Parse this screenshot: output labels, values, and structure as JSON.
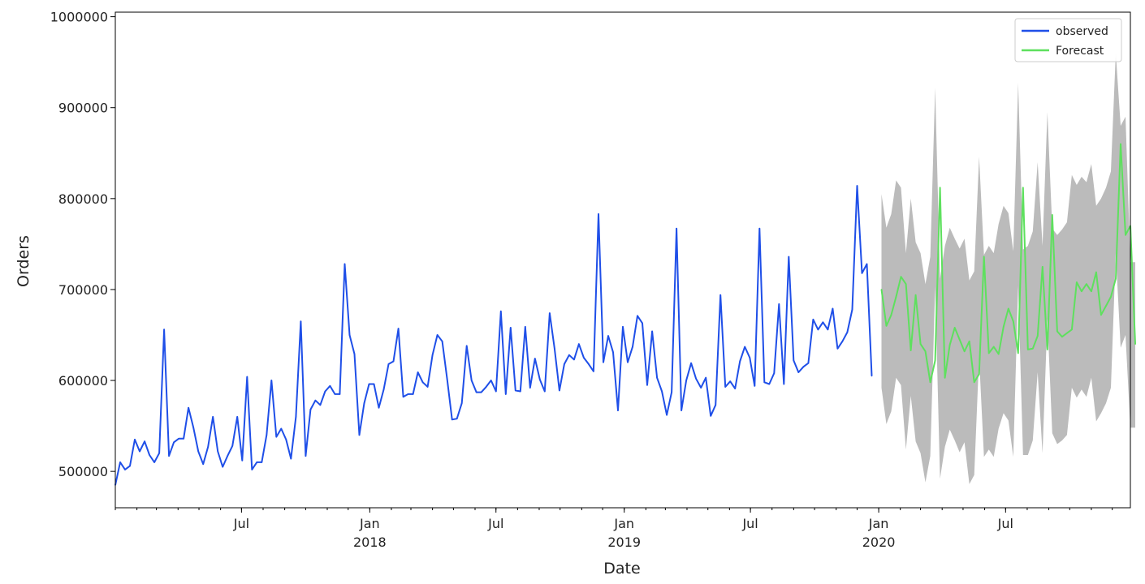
{
  "chart_data": {
    "type": "line",
    "title": "",
    "xlabel": "Date",
    "ylabel": "Orders",
    "xlim": [
      "2017-01-01",
      "2020-12-27"
    ],
    "ylim": [
      460000,
      1005000
    ],
    "y_ticks": [
      {
        "value": 500000,
        "label": "500000"
      },
      {
        "value": 600000,
        "label": "600000"
      },
      {
        "value": 700000,
        "label": "700000"
      },
      {
        "value": 800000,
        "label": "800000"
      },
      {
        "value": 900000,
        "label": "900000"
      },
      {
        "value": 1000000,
        "label": "1000000"
      }
    ],
    "x_ticks": [
      {
        "date": "2017-07-01",
        "label": "Jul",
        "year": ""
      },
      {
        "date": "2018-01-01",
        "label": "Jan",
        "year": "2018"
      },
      {
        "date": "2018-07-01",
        "label": "Jul",
        "year": ""
      },
      {
        "date": "2019-01-01",
        "label": "Jan",
        "year": "2019"
      },
      {
        "date": "2019-07-01",
        "label": "Jul",
        "year": ""
      },
      {
        "date": "2020-01-01",
        "label": "Jan",
        "year": "2020"
      },
      {
        "date": "2020-07-01",
        "label": "Jul",
        "year": ""
      }
    ],
    "legend": {
      "position": "top-right",
      "entries": [
        "observed",
        "Forecast"
      ]
    },
    "grid": false,
    "series": [
      {
        "name": "observed",
        "color": "#1f4fe8",
        "start": "2017-01-01",
        "interval_days": 7,
        "values": [
          485000,
          510000,
          502000,
          506000,
          535000,
          522000,
          533000,
          518000,
          510000,
          520000,
          656000,
          517000,
          532000,
          536000,
          536000,
          570000,
          548000,
          522000,
          508000,
          527000,
          560000,
          522000,
          505000,
          517000,
          528000,
          560000,
          512000,
          604000,
          502000,
          510000,
          510000,
          540000,
          600000,
          538000,
          547000,
          535000,
          514000,
          560000,
          665000,
          517000,
          568000,
          578000,
          573000,
          588000,
          594000,
          585000,
          585000,
          728000,
          650000,
          629000,
          540000,
          575000,
          596000,
          596000,
          570000,
          590000,
          618000,
          621000,
          657000,
          582000,
          585000,
          585000,
          609000,
          598000,
          593000,
          628000,
          650000,
          643000,
          601000,
          557000,
          558000,
          575000,
          638000,
          600000,
          587000,
          587000,
          593000,
          600000,
          588000,
          676000,
          585000,
          658000,
          589000,
          588000,
          659000,
          592000,
          624000,
          601000,
          588000,
          674000,
          635000,
          589000,
          618000,
          628000,
          623000,
          640000,
          625000,
          618000,
          610000,
          783000,
          620000,
          649000,
          631000,
          567000,
          659000,
          620000,
          637000,
          671000,
          663000,
          595000,
          654000,
          603000,
          588000,
          562000,
          587000,
          767000,
          567000,
          600000,
          619000,
          602000,
          592000,
          603000,
          561000,
          573000,
          694000,
          593000,
          599000,
          591000,
          621000,
          637000,
          625000,
          594000,
          767000,
          598000,
          596000,
          608000,
          684000,
          596000,
          736000,
          622000,
          609000,
          615000,
          619000,
          667000,
          656000,
          664000,
          656000,
          679000,
          635000,
          643000,
          653000,
          678000,
          814000,
          718000,
          728000,
          605000
        ]
      },
      {
        "name": "Forecast",
        "color": "#5ee05e",
        "start": "2020-01-05",
        "interval_days": 7,
        "values": [
          700000,
          660000,
          672000,
          692000,
          714000,
          706000,
          633000,
          694000,
          640000,
          632000,
          598000,
          622000,
          812000,
          603000,
          639000,
          658000,
          645000,
          632000,
          643000,
          598000,
          607000,
          736000,
          630000,
          637000,
          629000,
          659000,
          679000,
          665000,
          630000,
          812000,
          634000,
          635000,
          649000,
          725000,
          634000,
          782000,
          654000,
          648000,
          652000,
          656000,
          708000,
          698000,
          706000,
          698000,
          719000,
          672000,
          682000,
          692000,
          712000,
          860000,
          760000,
          770000,
          640000
        ]
      }
    ],
    "confidence_band": {
      "color": "#bbbbbb",
      "start": "2020-01-05",
      "interval_days": 7,
      "lower": [
        592000,
        552000,
        566000,
        603000,
        595000,
        524000,
        583000,
        533000,
        520000,
        488000,
        517000,
        703000,
        492000,
        527000,
        546000,
        534000,
        521000,
        532000,
        486000,
        496000,
        626000,
        516000,
        524000,
        516000,
        547000,
        564000,
        556000,
        516000,
        704000,
        518000,
        518000,
        534000,
        609000,
        520000,
        668000,
        542000,
        530000,
        534000,
        540000,
        592000,
        581000,
        590000,
        582000,
        603000,
        555000,
        564000,
        575000,
        592000,
        740000,
        636000,
        650000,
        548000,
        548000
      ],
      "upper": [
        805000,
        768000,
        783000,
        820000,
        812000,
        740000,
        800000,
        752000,
        740000,
        706000,
        736000,
        922000,
        712000,
        748000,
        768000,
        756000,
        745000,
        756000,
        710000,
        720000,
        846000,
        738000,
        748000,
        740000,
        772000,
        792000,
        784000,
        742000,
        927000,
        744000,
        748000,
        764000,
        840000,
        748000,
        895000,
        767000,
        760000,
        766000,
        774000,
        826000,
        815000,
        824000,
        818000,
        838000,
        792000,
        800000,
        812000,
        830000,
        960000,
        880000,
        890000,
        730000,
        730000
      ]
    }
  }
}
